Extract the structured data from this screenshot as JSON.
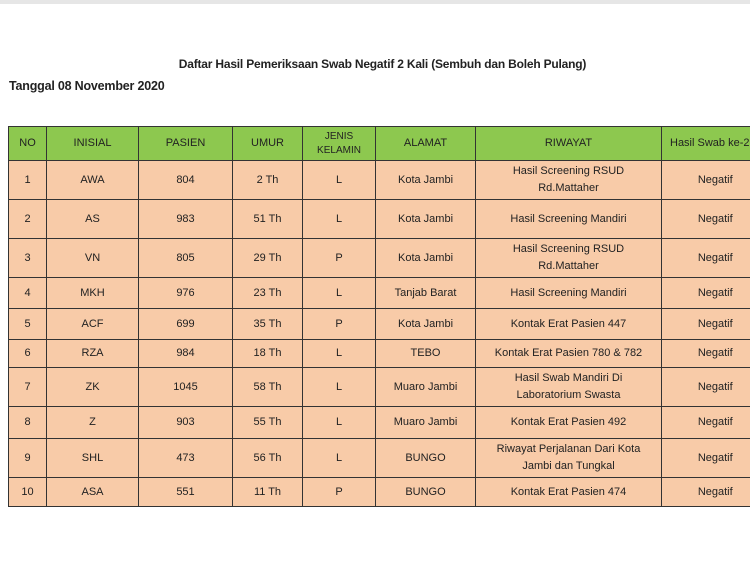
{
  "title": "Daftar Hasil Pemeriksaan Swab Negatif 2 Kali (Sembuh dan Boleh Pulang)",
  "date": "Tanggal 08 November 2020",
  "colors": {
    "header": "#8dc84f",
    "row": "#f8cba8"
  },
  "headers": [
    "NO",
    "INISIAL",
    "PASIEN",
    "UMUR",
    "JENIS KELAMIN",
    "ALAMAT",
    "RIWAYAT",
    "Hasil Swab ke-2"
  ],
  "rows": [
    [
      "1",
      "AWA",
      "804",
      "2 Th",
      "L",
      "Kota Jambi",
      "Hasil Screening RSUD Rd.Mattaher",
      "Negatif"
    ],
    [
      "2",
      "AS",
      "983",
      "51 Th",
      "L",
      "Kota Jambi",
      "Hasil Screening Mandiri",
      "Negatif"
    ],
    [
      "3",
      "VN",
      "805",
      "29 Th",
      "P",
      "Kota Jambi",
      "Hasil Screening RSUD Rd.Mattaher",
      "Negatif"
    ],
    [
      "4",
      "MKH",
      "976",
      "23 Th",
      "L",
      "Tanjab Barat",
      "Hasil Screening Mandiri",
      "Negatif"
    ],
    [
      "5",
      "ACF",
      "699",
      "35 Th",
      "P",
      "Kota Jambi",
      "Kontak Erat Pasien 447",
      "Negatif"
    ],
    [
      "6",
      "RZA",
      "984",
      "18 Th",
      "L",
      "TEBO",
      "Kontak Erat Pasien 780 & 782",
      "Negatif"
    ],
    [
      "7",
      "ZK",
      "1045",
      "58 Th",
      "L",
      "Muaro Jambi",
      "Hasil Swab Mandiri Di Laboratorium Swasta",
      "Negatif"
    ],
    [
      "8",
      "Z",
      "903",
      "55 Th",
      "L",
      "Muaro Jambi",
      "Kontak Erat Pasien 492",
      "Negatif"
    ],
    [
      "9",
      "SHL",
      "473",
      "56 Th",
      "L",
      "BUNGO",
      "Riwayat Perjalanan Dari Kota Jambi dan Tungkal",
      "Negatif"
    ],
    [
      "10",
      "ASA",
      "551",
      "11 Th",
      "P",
      "BUNGO",
      "Kontak Erat Pasien 474",
      "Negatif"
    ]
  ]
}
